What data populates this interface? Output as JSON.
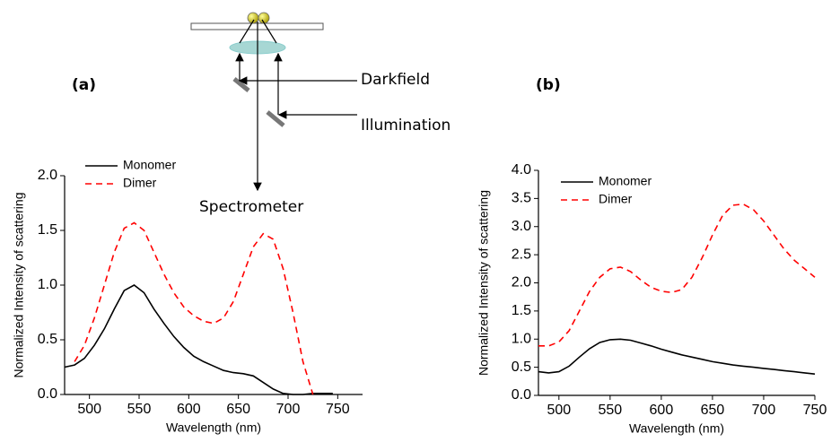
{
  "diagram": {
    "labels": [
      "Darkfield",
      "Illumination",
      "Spectrometer"
    ]
  },
  "chart_data": [
    {
      "type": "line",
      "panel_label": "(a)",
      "x_label": "Wavelength (nm)",
      "y_label": "Normalized Intensity of scattering",
      "x": [
        475,
        485,
        495,
        505,
        515,
        525,
        535,
        545,
        555,
        565,
        575,
        585,
        595,
        605,
        615,
        625,
        635,
        645,
        655,
        665,
        675,
        685,
        695,
        705,
        715,
        725,
        735,
        745
      ],
      "series": [
        {
          "name": "Monomer",
          "color": "#000000",
          "dashed": false,
          "values": [
            0.25,
            0.27,
            0.33,
            0.45,
            0.6,
            0.78,
            0.95,
            1.0,
            0.93,
            0.78,
            0.65,
            0.53,
            0.43,
            0.35,
            0.3,
            0.26,
            0.22,
            0.2,
            0.19,
            0.17,
            0.11,
            0.05,
            0.01,
            0,
            0,
            0.01,
            0.01,
            0.01
          ]
        },
        {
          "name": "Dimer",
          "color": "#ff0000",
          "dashed": true,
          "values": [
            null,
            0.3,
            0.45,
            0.7,
            1.0,
            1.3,
            1.52,
            1.57,
            1.5,
            1.3,
            1.1,
            0.93,
            0.8,
            0.72,
            0.67,
            0.65,
            0.7,
            0.85,
            1.1,
            1.35,
            1.47,
            1.42,
            1.15,
            0.75,
            0.3,
            0,
            null,
            null
          ]
        }
      ],
      "xlim": [
        475,
        775
      ],
      "ylim": [
        0,
        2
      ],
      "xticks": [
        500,
        550,
        600,
        650,
        700,
        750
      ],
      "yticks": [
        {
          "value": 0,
          "label": "0.0"
        },
        0.5,
        {
          "value": 1,
          "label": "1.0"
        },
        1.5,
        {
          "value": 2,
          "label": "2.0"
        }
      ],
      "legend": "upper left"
    },
    {
      "type": "line",
      "panel_label": "(b)",
      "x_label": "Wavelength (nm)",
      "y_label": "Normalized Intensity of scattering",
      "x": [
        480,
        490,
        500,
        510,
        520,
        530,
        540,
        550,
        560,
        570,
        580,
        590,
        600,
        610,
        620,
        630,
        640,
        650,
        660,
        670,
        680,
        690,
        700,
        710,
        720,
        730,
        740,
        750
      ],
      "series": [
        {
          "name": "Monomer",
          "color": "#000000",
          "dashed": false,
          "values": [
            0.42,
            0.4,
            0.42,
            0.52,
            0.68,
            0.83,
            0.94,
            0.99,
            1.0,
            0.98,
            0.93,
            0.88,
            0.82,
            0.77,
            0.72,
            0.68,
            0.64,
            0.6,
            0.57,
            0.54,
            0.52,
            0.5,
            0.48,
            0.46,
            0.44,
            0.42,
            0.4,
            0.38
          ]
        },
        {
          "name": "Dimer",
          "color": "#ff0000",
          "dashed": true,
          "values": [
            0.88,
            0.88,
            0.95,
            1.15,
            1.5,
            1.85,
            2.1,
            2.25,
            2.28,
            2.2,
            2.05,
            1.92,
            1.85,
            1.83,
            1.88,
            2.1,
            2.45,
            2.85,
            3.2,
            3.38,
            3.4,
            3.3,
            3.1,
            2.85,
            2.6,
            2.4,
            2.25,
            2.1
          ]
        }
      ],
      "xlim": [
        480,
        750
      ],
      "ylim": [
        0,
        4
      ],
      "xticks": [
        500,
        550,
        600,
        650,
        700,
        750
      ],
      "yticks": [
        {
          "value": 0,
          "label": "0.0"
        },
        0.5,
        {
          "value": 1,
          "label": "1.0"
        },
        1.5,
        {
          "value": 2,
          "label": "2.0"
        },
        2.5,
        {
          "value": 3,
          "label": "3.0"
        },
        3.5,
        {
          "value": 4,
          "label": "4.0"
        }
      ],
      "legend": "upper left"
    }
  ]
}
